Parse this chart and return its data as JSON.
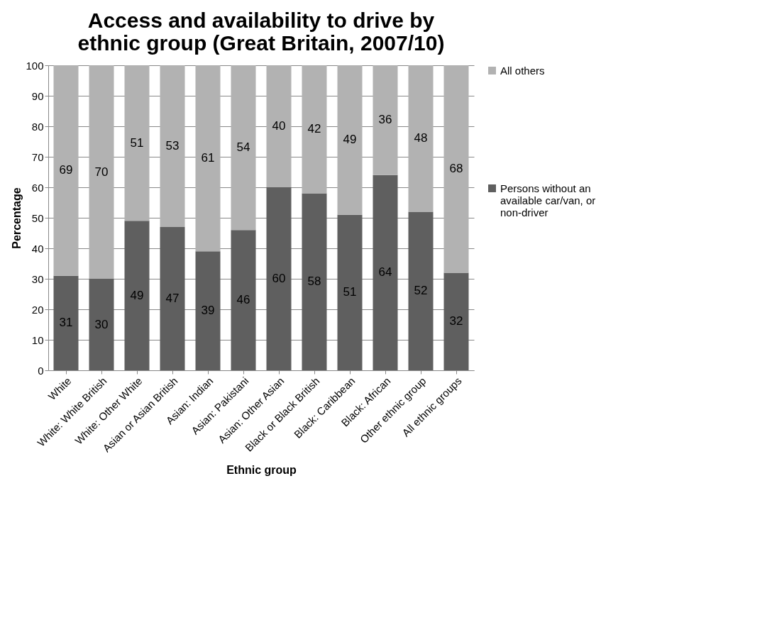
{
  "chart_data": {
    "type": "bar",
    "title": "Access and availability to drive by ethnic group (Great Britain, 2007/10)",
    "xlabel": "Ethnic group",
    "ylabel": "Percentage",
    "categories": [
      "White",
      "White: White British",
      "White: Other White",
      "Asian or Asian British",
      "Asian: Indian",
      "Asian: Pakistani",
      "Asian: Other Asian",
      "Black or Black British",
      "Black: Caribbean",
      "Black: African",
      "Other ethnic group",
      "All ethnic groups"
    ],
    "stacked": true,
    "data_labels": true,
    "legend": "right",
    "grid": "y",
    "ylim": [
      0,
      100
    ],
    "yticks": [
      0,
      10,
      20,
      30,
      40,
      50,
      60,
      70,
      80,
      90,
      100
    ],
    "series": [
      {
        "name": "Persons without an available car/van, or non-driver",
        "color": "#5f5f5f",
        "values": [
          31,
          30,
          49,
          47,
          39,
          46,
          60,
          58,
          51,
          64,
          52,
          32
        ]
      },
      {
        "name": "All others",
        "color": "#b2b2b2",
        "values": [
          69,
          70,
          51,
          53,
          61,
          54,
          40,
          42,
          49,
          36,
          48,
          68
        ]
      }
    ]
  }
}
